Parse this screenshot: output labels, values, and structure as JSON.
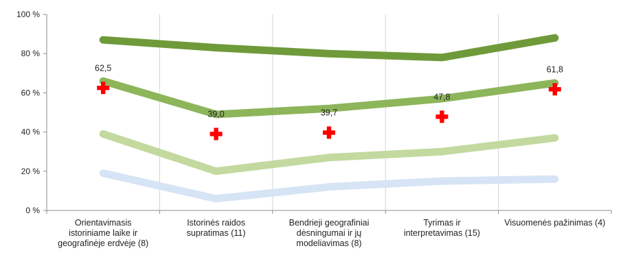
{
  "chart_data": {
    "type": "line",
    "title": "",
    "xlabel": "",
    "ylabel": "",
    "ylim": [
      0,
      100
    ],
    "y_ticks": [
      "0 %",
      "20 %",
      "40 %",
      "60 %",
      "80 %",
      "100 %"
    ],
    "y_tick_values": [
      0,
      20,
      40,
      60,
      80,
      100
    ],
    "grid": "vertical",
    "categories": [
      [
        "Orientavimasis",
        "istoriniame laike ir",
        "geografinėje erdvėje (8)"
      ],
      [
        "Istorinės raidos",
        "supratimas (11)"
      ],
      [
        "Bendrieji geografiniai",
        "dėsningumai ir jų",
        "modeliavimas (8)"
      ],
      [
        "Tyrimas ir",
        "interpretavimas (15)"
      ],
      [
        "Visuomenės pažinimas (4)"
      ]
    ],
    "series": [
      {
        "color": "#6f9a3a",
        "values": [
          87,
          83,
          80,
          78,
          88
        ]
      },
      {
        "color": "#8db55a",
        "values": [
          66,
          49,
          52,
          57,
          65
        ]
      },
      {
        "color": "#c3d99f",
        "values": [
          39,
          20,
          27,
          30,
          37
        ]
      },
      {
        "color": "#d6e4f5",
        "values": [
          19,
          6,
          12,
          15,
          16
        ]
      }
    ],
    "markers": {
      "color": "#ff0000",
      "values": [
        62.5,
        39.0,
        39.7,
        47.8,
        61.8
      ],
      "labels": [
        "62,5",
        "39,0",
        "39,7",
        "47,8",
        "61,8"
      ]
    }
  }
}
